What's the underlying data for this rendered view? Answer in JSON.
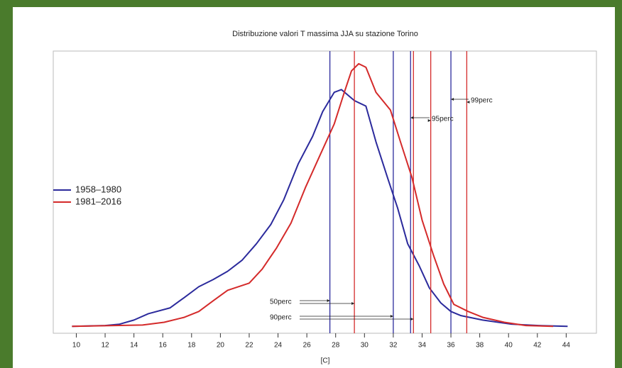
{
  "chart_data": {
    "type": "line",
    "title": "Distribuzione valori T massima JJA su stazione Torino",
    "xlabel": "[C]",
    "xlim": [
      8.4,
      46.1
    ],
    "xticks": [
      10,
      12,
      14,
      16,
      18,
      20,
      22,
      24,
      26,
      28,
      30,
      32,
      34,
      36,
      38,
      40,
      42,
      44
    ],
    "ylim": [
      -0.025,
      1
    ],
    "legend": "left",
    "percentile_labels": [
      "50perc",
      "90perc",
      "95perc",
      "99perc"
    ],
    "series": [
      {
        "name": "1958–1980",
        "color": "#2b2a9c",
        "x": [
          9.7,
          12,
          13,
          14,
          15,
          16.5,
          17.5,
          18.5,
          19.5,
          20.5,
          21.5,
          22.5,
          23.5,
          24.4,
          25.4,
          26.4,
          27.1,
          27.9,
          28.4,
          29.3,
          30.1,
          30.8,
          31.6,
          32.3,
          33,
          33.8,
          34.5,
          35.3,
          36,
          36.7,
          38.2,
          40.2,
          42.1,
          44.1
        ],
        "values": [
          0,
          0.003,
          0.008,
          0.023,
          0.046,
          0.067,
          0.105,
          0.144,
          0.17,
          0.2,
          0.24,
          0.3,
          0.37,
          0.46,
          0.59,
          0.69,
          0.78,
          0.85,
          0.86,
          0.82,
          0.8,
          0.67,
          0.54,
          0.43,
          0.3,
          0.22,
          0.14,
          0.085,
          0.054,
          0.039,
          0.023,
          0.008,
          0.003,
          0
        ],
        "percentiles": [
          27.6,
          32.0,
          33.2,
          36.0
        ]
      },
      {
        "name": "1981–2016",
        "color": "#d42a2a",
        "x": [
          9.7,
          12.6,
          14.6,
          16.1,
          17.5,
          18.5,
          19.5,
          20.5,
          22,
          22.9,
          23.9,
          24.9,
          25.9,
          26.9,
          27.9,
          28.6,
          29.1,
          29.6,
          30.1,
          30.8,
          31.8,
          32.5,
          33.3,
          34,
          34.8,
          35.5,
          36.2,
          37.2,
          38.2,
          39.7,
          41.2,
          43.1
        ],
        "values": [
          0,
          0.003,
          0.005,
          0.015,
          0.033,
          0.054,
          0.093,
          0.131,
          0.157,
          0.208,
          0.285,
          0.375,
          0.504,
          0.62,
          0.735,
          0.85,
          0.928,
          0.954,
          0.941,
          0.85,
          0.786,
          0.67,
          0.54,
          0.386,
          0.257,
          0.154,
          0.08,
          0.054,
          0.033,
          0.015,
          0.003,
          0
        ],
        "percentiles": [
          29.3,
          33.4,
          34.6,
          37.1
        ]
      }
    ]
  }
}
